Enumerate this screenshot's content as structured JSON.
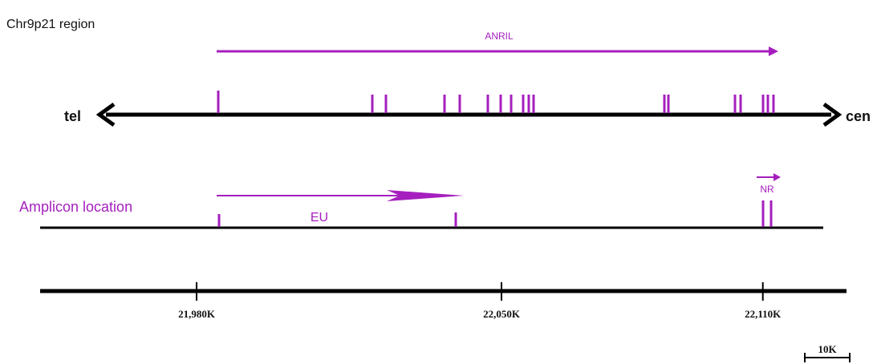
{
  "title": "Chr9p21 region",
  "colors": {
    "accent": "#a51fbe",
    "line": "#000000",
    "text": "#111111"
  },
  "chromosome": {
    "left_label": "tel",
    "right_label": "cen"
  },
  "transcript": {
    "label": "ANRIL"
  },
  "amplicons": {
    "title": "Amplicon location",
    "eu_label": "EU",
    "nr_label": "NR"
  },
  "scale": {
    "unit": "K",
    "ticks": [
      {
        "value": 21980,
        "label": "21,980K"
      },
      {
        "value": 22050,
        "label": "22,050K"
      },
      {
        "value": 22110,
        "label": "22,110K"
      }
    ],
    "scalebar_label": "10K"
  }
}
